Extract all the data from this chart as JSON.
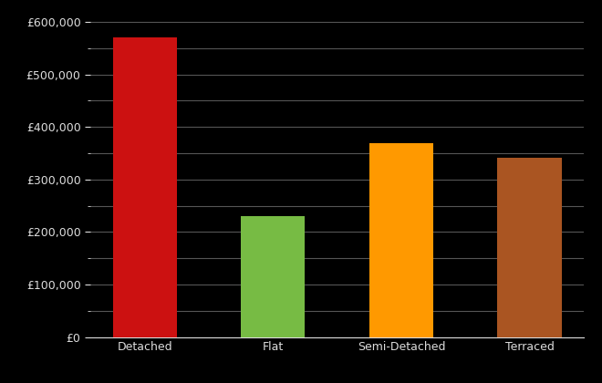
{
  "categories": [
    "Detached",
    "Flat",
    "Semi-Detached",
    "Terraced"
  ],
  "values": [
    570000,
    230000,
    370000,
    342000
  ],
  "bar_colors": [
    "#cc1111",
    "#77bb44",
    "#ff9900",
    "#aa5522"
  ],
  "background_color": "#000000",
  "text_color": "#dddddd",
  "grid_color": "#555555",
  "ylim": [
    0,
    620000
  ],
  "ytick_major_step": 100000,
  "ytick_minor_step": 50000,
  "figwidth": 6.6,
  "figheight": 4.2,
  "dpi": 100
}
